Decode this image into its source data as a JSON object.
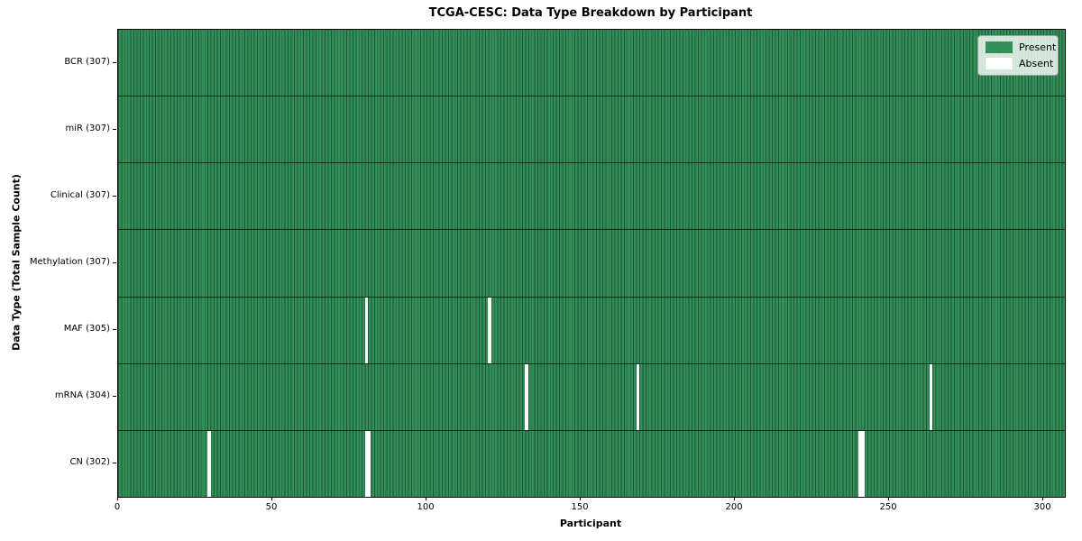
{
  "title": "TCGA-CESC: Data Type Breakdown by Participant",
  "xlabel": "Participant",
  "ylabel": "Data Type (Total Sample Count)",
  "legend": {
    "present_label": "Present",
    "absent_label": "Absent"
  },
  "colors": {
    "present": "#338f58",
    "absent": "#ffffff",
    "cell_edge": "rgba(10,40,25,0.55)",
    "row_separator": "rgba(0,0,0,0.7)",
    "plot_border": "#000000"
  },
  "chart_data": {
    "type": "heatmap",
    "title": "TCGA-CESC: Data Type Breakdown by Participant",
    "xlabel": "Participant",
    "ylabel": "Data Type (Total Sample Count)",
    "n_participants": 307,
    "x_ticks": [
      0,
      50,
      100,
      150,
      200,
      250,
      300
    ],
    "xlim": [
      0,
      307
    ],
    "grid": false,
    "legend_position": "upper right",
    "legend_entries": [
      "Present",
      "Absent"
    ],
    "rows": [
      {
        "label": "BCR (307)",
        "data_type": "BCR",
        "present_count": 307,
        "absent_participants": []
      },
      {
        "label": "miR (307)",
        "data_type": "miR",
        "present_count": 307,
        "absent_participants": []
      },
      {
        "label": "Clinical (307)",
        "data_type": "Clinical",
        "present_count": 307,
        "absent_participants": []
      },
      {
        "label": "Methylation (307)",
        "data_type": "Methylation",
        "present_count": 307,
        "absent_participants": []
      },
      {
        "label": "MAF (305)",
        "data_type": "MAF",
        "present_count": 305,
        "absent_participants": [
          80,
          120
        ]
      },
      {
        "label": "mRNA (304)",
        "data_type": "mRNA",
        "present_count": 304,
        "absent_participants": [
          132,
          168,
          263
        ]
      },
      {
        "label": "CN (302)",
        "data_type": "CN",
        "present_count": 302,
        "absent_participants": [
          29,
          80,
          81,
          240,
          241
        ]
      }
    ]
  }
}
